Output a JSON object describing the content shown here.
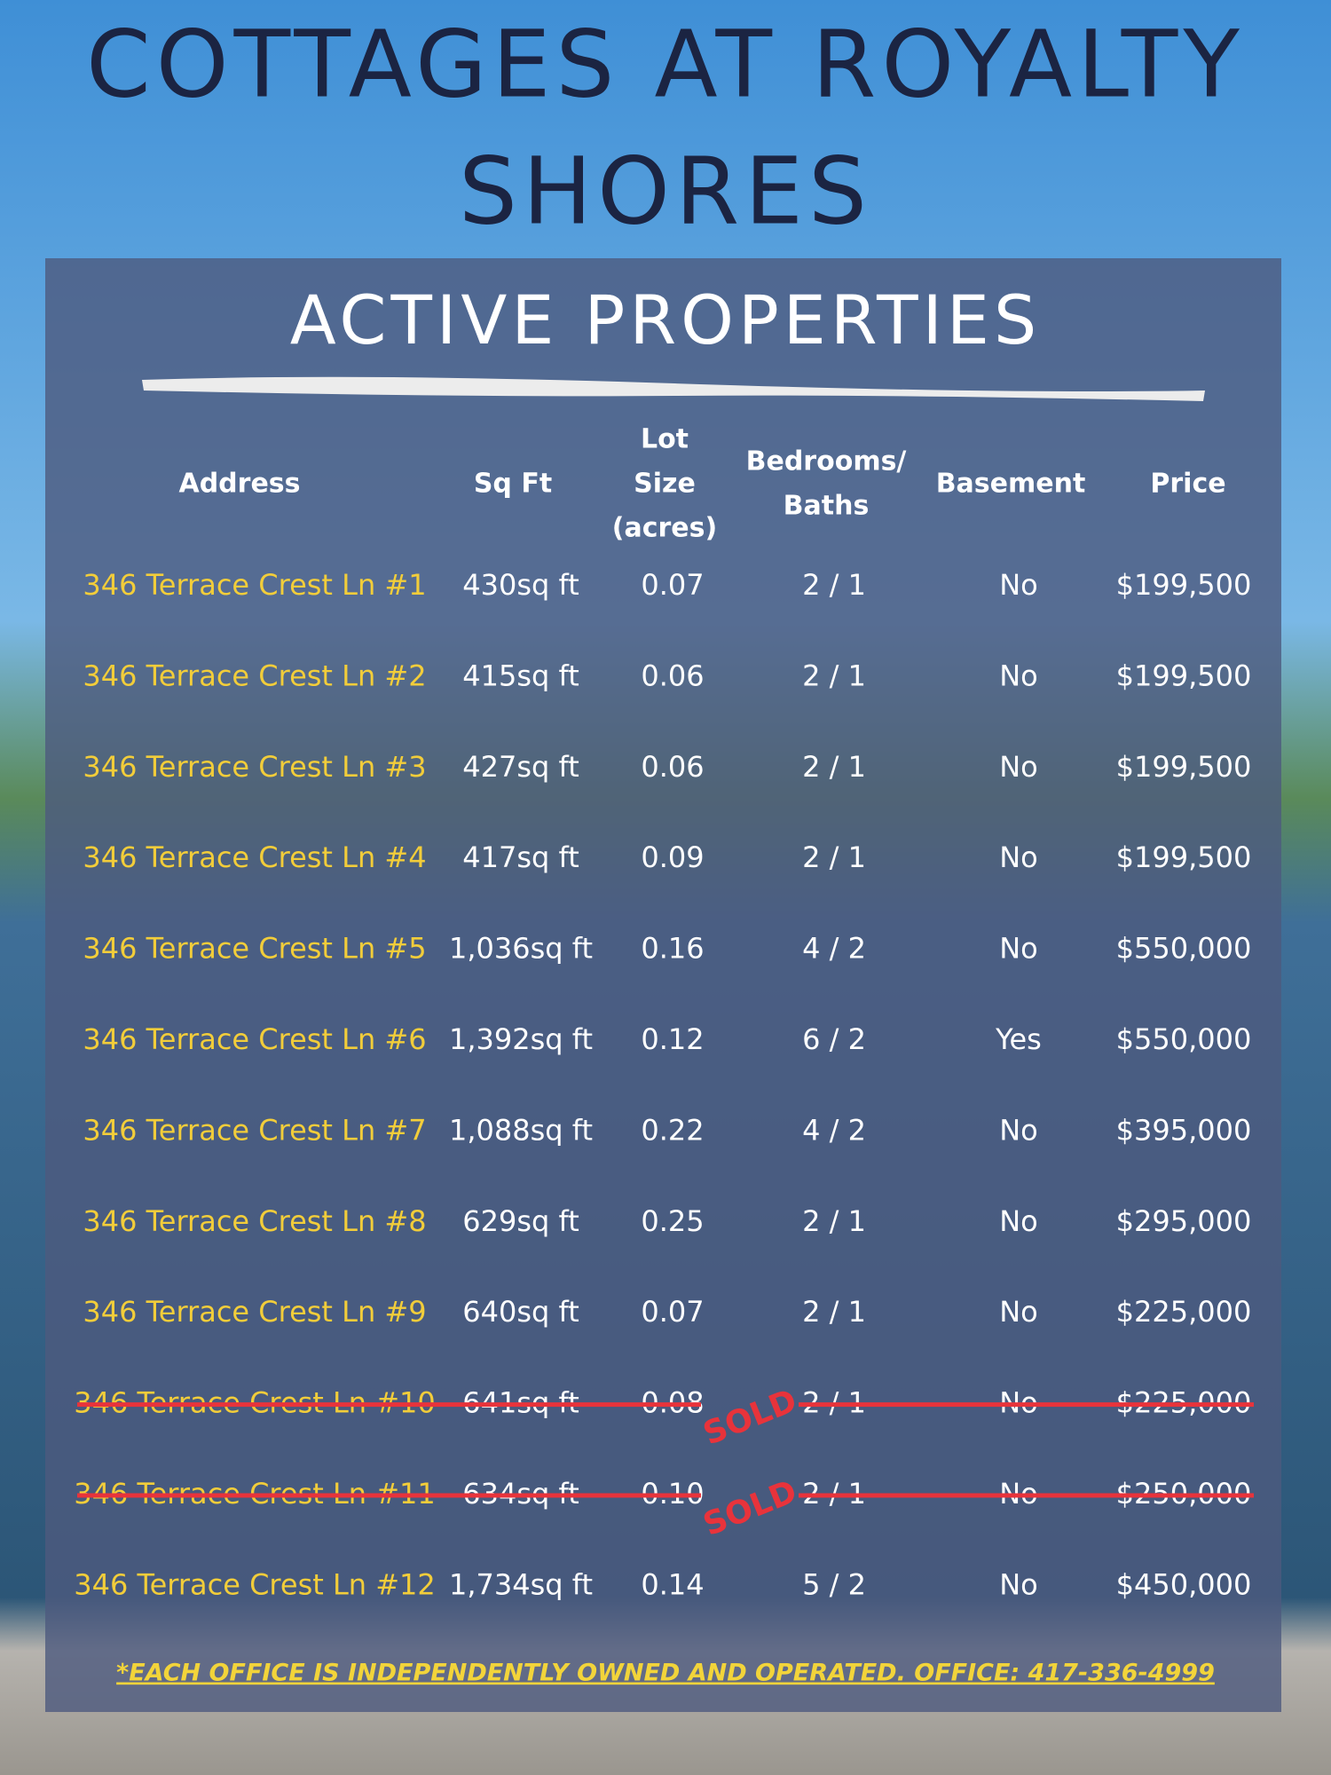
{
  "header": {
    "title_lines": [
      "COTTAGES AT ROYALTY",
      "SHORES"
    ],
    "subtitle": "ACTIVE PROPERTIES"
  },
  "table": {
    "columns": [
      [
        "Address"
      ],
      [
        "Sq Ft"
      ],
      [
        "Lot",
        "Size",
        "(acres)"
      ],
      [
        "Bedrooms/",
        "Baths"
      ],
      [
        "Basement"
      ],
      [
        "Price"
      ]
    ],
    "rows": [
      {
        "cells": [
          "346 Terrace Crest Ln #1",
          "430sq ft",
          "0.07",
          "2 / 1",
          "No",
          "$199,500"
        ]
      },
      {
        "cells": [
          "346 Terrace Crest Ln #2",
          "415sq ft",
          "0.06",
          "2 / 1",
          "No",
          "$199,500"
        ]
      },
      {
        "cells": [
          "346 Terrace Crest Ln #3",
          "427sq ft",
          "0.06",
          "2 / 1",
          "No",
          "$199,500"
        ]
      },
      {
        "cells": [
          "346 Terrace Crest Ln #4",
          "417sq ft",
          "0.09",
          "2 / 1",
          "No",
          "$199,500"
        ]
      },
      {
        "cells": [
          "346 Terrace Crest Ln #5",
          "1,036sq ft",
          "0.16",
          "4 / 2",
          "No",
          "$550,000"
        ]
      },
      {
        "cells": [
          "346 Terrace Crest Ln #6",
          "1,392sq ft",
          "0.12",
          "6 / 2",
          "Yes",
          "$550,000"
        ]
      },
      {
        "cells": [
          "346 Terrace Crest Ln #7",
          "1,088sq ft",
          "0.22",
          "4 / 2",
          "No",
          "$395,000"
        ]
      },
      {
        "cells": [
          "346 Terrace Crest Ln #8",
          "629sq ft",
          "0.25",
          "2 / 1",
          "No",
          "$295,000"
        ]
      },
      {
        "cells": [
          "346 Terrace Crest Ln #9",
          "640sq ft",
          "0.07",
          "2 / 1",
          "No",
          "$225,000"
        ]
      },
      {
        "cells": [
          "346 Terrace Crest Ln #10",
          "641sq ft",
          "0.08",
          "2 / 1",
          "No",
          "$225,000"
        ],
        "stamp": "SOLD"
      },
      {
        "cells": [
          "346 Terrace Crest Ln #11",
          "634sq ft",
          "0.10",
          "2 / 1",
          "No",
          "$250,000"
        ],
        "stamp": "SOLD"
      },
      {
        "cells": [
          "346 Terrace Crest Ln #12",
          "1,734sq ft",
          "0.14",
          "5 / 2",
          "No",
          "$450,000"
        ]
      }
    ]
  },
  "footer": {
    "note": "*EACH OFFICE IS INDEPENDENTLY OWNED AND OPERATED. OFFICE:  417-336-4999"
  }
}
